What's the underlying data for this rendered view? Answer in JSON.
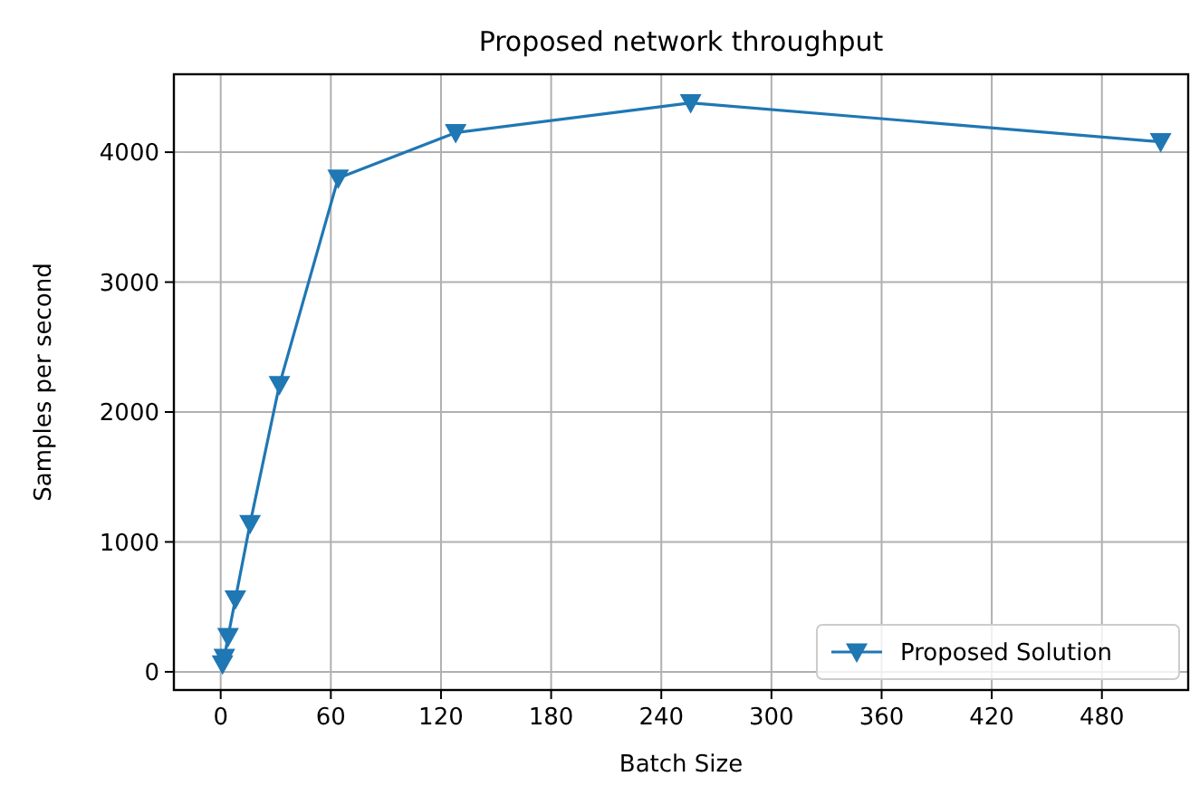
{
  "chart_data": {
    "type": "line",
    "title": "Proposed network throughput",
    "xlabel": "Batch Size",
    "ylabel": "Samples per second",
    "x": [
      1,
      2,
      4,
      8,
      16,
      32,
      64,
      128,
      256,
      512
    ],
    "series": [
      {
        "name": "Proposed Solution",
        "color": "#1f77b4",
        "values": [
          60,
          110,
          270,
          560,
          1140,
          2210,
          3800,
          4150,
          4380,
          4080
        ]
      }
    ],
    "xlim": [
      -25.5,
      527
    ],
    "xticks": [
      0,
      60,
      120,
      180,
      240,
      300,
      360,
      420,
      480
    ],
    "ylim": [
      -140,
      4600
    ],
    "yticks": [
      0,
      1000,
      2000,
      3000,
      4000
    ],
    "grid": true,
    "legend": "bottom right",
    "marker": "triangle",
    "line_style": "solid"
  }
}
